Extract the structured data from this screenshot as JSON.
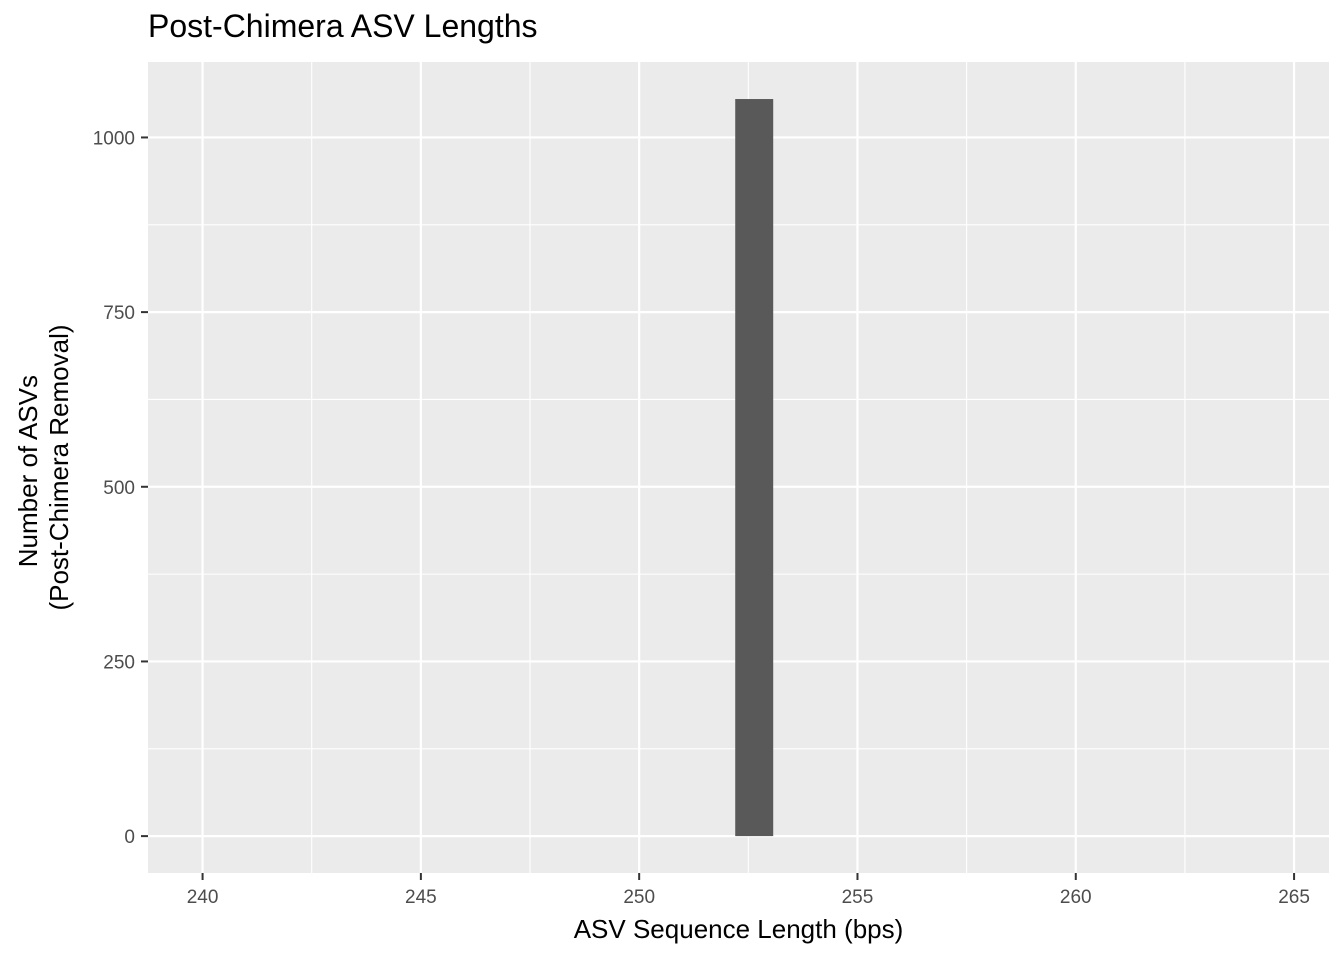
{
  "chart_data": {
    "type": "bar",
    "title": "Post-Chimera ASV Lengths",
    "xlabel": "ASV Sequence Length (bps)",
    "ylabel_lines": [
      "Number of ASVs",
      "(Post-Chimera Removal)"
    ],
    "xlim": [
      238.75,
      265.8
    ],
    "ylim": [
      -52.8,
      1108
    ],
    "x_ticks": [
      240,
      245,
      250,
      255,
      260,
      265
    ],
    "x_tick_labels": [
      "240",
      "245",
      "250",
      "255",
      "260",
      "265"
    ],
    "y_ticks": [
      0,
      250,
      500,
      750,
      1000
    ],
    "y_tick_labels": [
      "0",
      "250",
      "500",
      "750",
      "1000"
    ],
    "bars": [
      {
        "x_start": 252.2,
        "x_end": 253.07,
        "count": 1055
      }
    ],
    "grid": true,
    "colors": {
      "panel_background": "#EBEBEB",
      "grid": "#FFFFFF",
      "bar": "#595959",
      "tick": "#333333"
    }
  }
}
